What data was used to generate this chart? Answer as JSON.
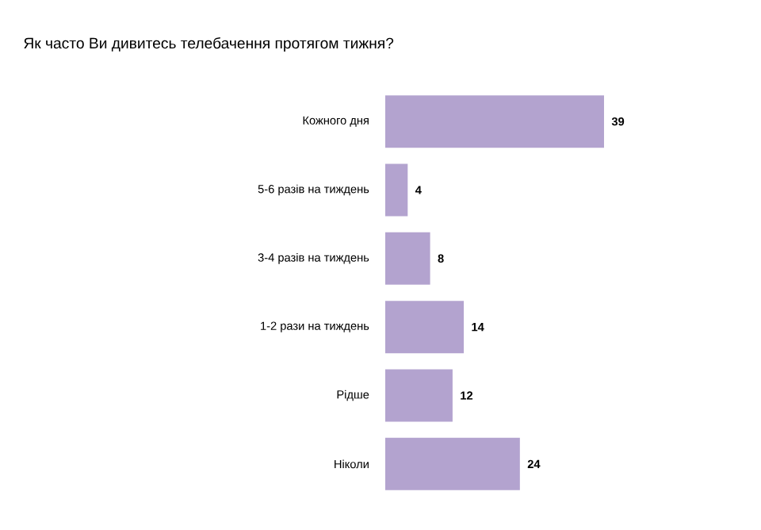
{
  "chart_data": {
    "type": "bar",
    "orientation": "horizontal",
    "title": "Як часто Ви дивитесь телебачення протягом тижня?",
    "categories": [
      "Кожного дня",
      "5-6 разів на тиждень",
      "3-4 разів на тиждень",
      "1-2 рази на тиждень",
      "Рідше",
      "Ніколи"
    ],
    "values": [
      39,
      4,
      8,
      14,
      12,
      24
    ],
    "color": "#b3a3cf",
    "data_labels": true
  }
}
